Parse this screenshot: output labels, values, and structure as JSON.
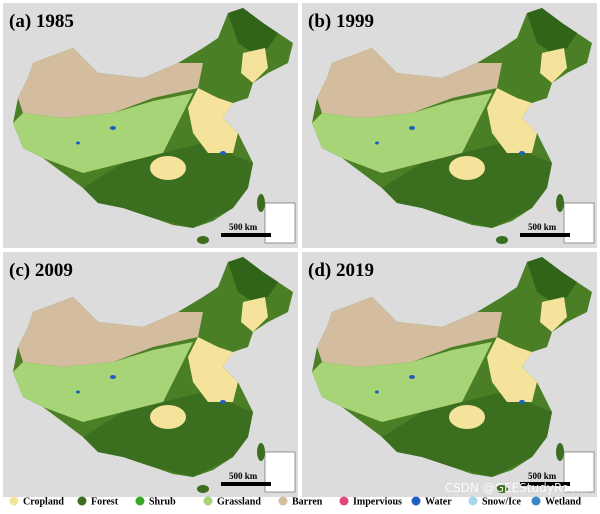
{
  "panels": [
    {
      "label": "(a) 1985",
      "scale": "500  km"
    },
    {
      "label": "(b) 1999",
      "scale": "500  km"
    },
    {
      "label": "(c) 2009",
      "scale": "500  km"
    },
    {
      "label": "(d) 2019",
      "scale": "500  km"
    }
  ],
  "legend": [
    {
      "label": "Cropland",
      "color": "#f5e39b"
    },
    {
      "label": "Forest",
      "color": "#3b6e1f"
    },
    {
      "label": "Shrub",
      "color": "#3aa82a"
    },
    {
      "label": "Grassland",
      "color": "#a7d477"
    },
    {
      "label": "Barren",
      "color": "#d3bd9e"
    },
    {
      "label": "Impervious",
      "color": "#e0457b"
    },
    {
      "label": "Water",
      "color": "#1f5fbf"
    },
    {
      "label": "Snow/Ice",
      "color": "#a6d8ec"
    },
    {
      "label": "Wetland",
      "color": "#3a86c8"
    }
  ],
  "watermark": "CSDN @GEEStudyRoom"
}
